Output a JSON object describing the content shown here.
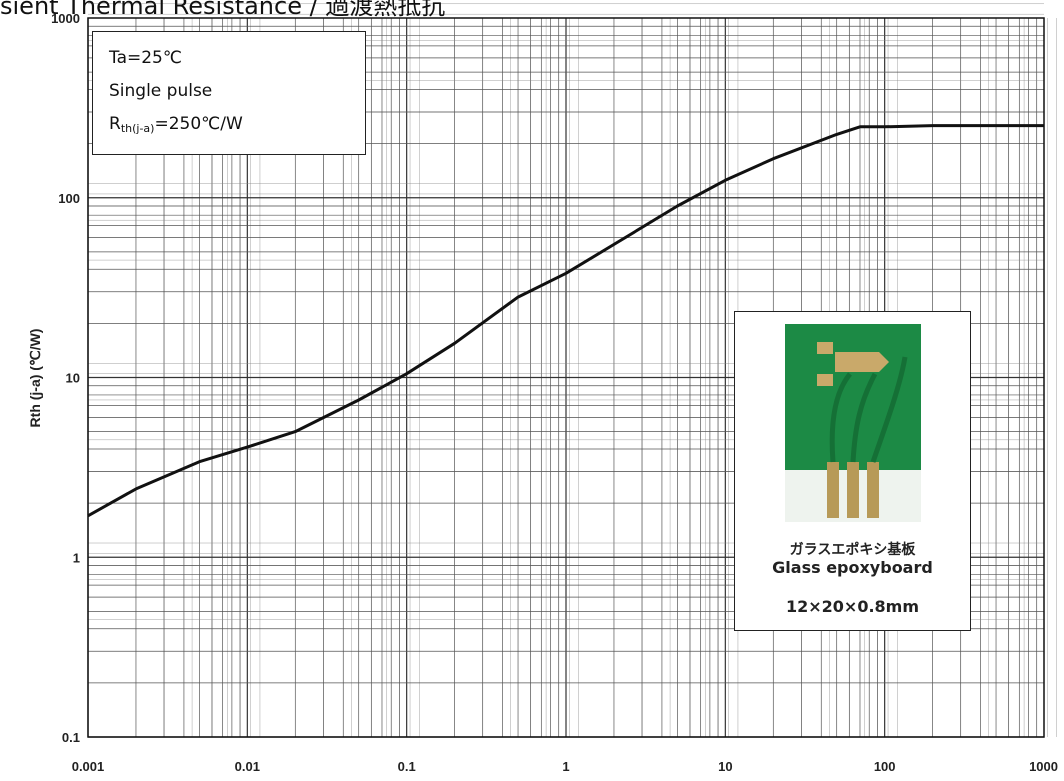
{
  "title_fragment": "sient Thermal Resistance / 過渡熱抵抗",
  "legend": {
    "line1": "Ta=25℃",
    "line2": "Single pulse",
    "line3_main": "R",
    "line3_sub": "th(j-a)",
    "line3_rest": "=250℃/W"
  },
  "inset": {
    "caption_jp": "ガラスエポキシ基板",
    "caption_en": "Glass epoxyboard",
    "dimensions": "12×20×0.8mm"
  },
  "chart_data": {
    "type": "line",
    "xscale": "log",
    "yscale": "log",
    "xlim": [
      0.001,
      1000
    ],
    "ylim": [
      0.1,
      1000
    ],
    "ylabel": "Rth (j-a) (℃/W)",
    "xlabel": "",
    "grid": true,
    "x_tick_labels": [
      "0.001",
      "0.01",
      "0.1",
      "1",
      "10",
      "100",
      "1000"
    ],
    "y_tick_labels": [
      "0.1",
      "1",
      "10",
      "100",
      "1000"
    ],
    "line_color": "#111111",
    "series": [
      {
        "x": [
          0.001,
          0.002,
          0.005,
          0.01,
          0.02,
          0.05,
          0.1,
          0.2,
          0.5,
          1,
          2,
          5,
          10,
          20,
          50,
          70,
          100,
          200,
          500,
          1000
        ],
        "y": [
          1.7,
          2.4,
          3.4,
          4.1,
          5.0,
          7.5,
          10.5,
          15.5,
          28,
          38,
          55,
          90,
          125,
          165,
          225,
          248,
          248,
          252,
          252,
          252
        ]
      }
    ]
  }
}
